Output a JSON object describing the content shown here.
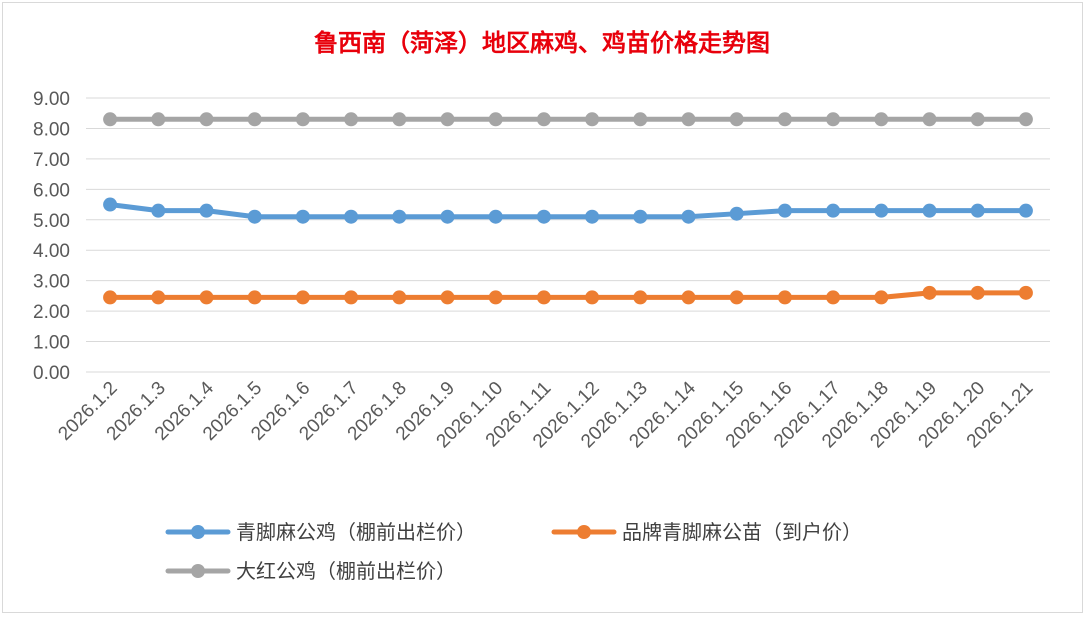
{
  "chart_data": {
    "type": "line",
    "title": "鲁西南（菏泽）地区麻鸡、鸡苗价格走势图",
    "xlabel": "",
    "ylabel": "",
    "ylim": [
      0,
      9
    ],
    "yticks": [
      "0.00",
      "1.00",
      "2.00",
      "3.00",
      "4.00",
      "5.00",
      "6.00",
      "7.00",
      "8.00",
      "9.00"
    ],
    "grid": true,
    "legend_position": "bottom",
    "categories": [
      "2026.1.2",
      "2026.1.3",
      "2026.1.4",
      "2026.1.5",
      "2026.1.6",
      "2026.1.7",
      "2026.1.8",
      "2026.1.9",
      "2026.1.10",
      "2026.1.11",
      "2026.1.12",
      "2026.1.13",
      "2026.1.14",
      "2026.1.15",
      "2026.1.16",
      "2026.1.17",
      "2026.1.18",
      "2026.1.19",
      "2026.1.20",
      "2026.1.21"
    ],
    "series": [
      {
        "name": "青脚麻公鸡（棚前出栏价）",
        "color": "#5b9bd5",
        "values": [
          5.5,
          5.3,
          5.3,
          5.1,
          5.1,
          5.1,
          5.1,
          5.1,
          5.1,
          5.1,
          5.1,
          5.1,
          5.1,
          5.2,
          5.3,
          5.3,
          5.3,
          5.3,
          5.3,
          5.3
        ]
      },
      {
        "name": "品牌青脚麻公苗（到户价）",
        "color": "#ed7d31",
        "values": [
          2.45,
          2.45,
          2.45,
          2.45,
          2.45,
          2.45,
          2.45,
          2.45,
          2.45,
          2.45,
          2.45,
          2.45,
          2.45,
          2.45,
          2.45,
          2.45,
          2.45,
          2.6,
          2.6,
          2.6
        ]
      },
      {
        "name": "大红公鸡（棚前出栏价）",
        "color": "#a5a5a5",
        "values": [
          8.3,
          8.3,
          8.3,
          8.3,
          8.3,
          8.3,
          8.3,
          8.3,
          8.3,
          8.3,
          8.3,
          8.3,
          8.3,
          8.3,
          8.3,
          8.3,
          8.3,
          8.3,
          8.3,
          8.3
        ]
      }
    ]
  }
}
